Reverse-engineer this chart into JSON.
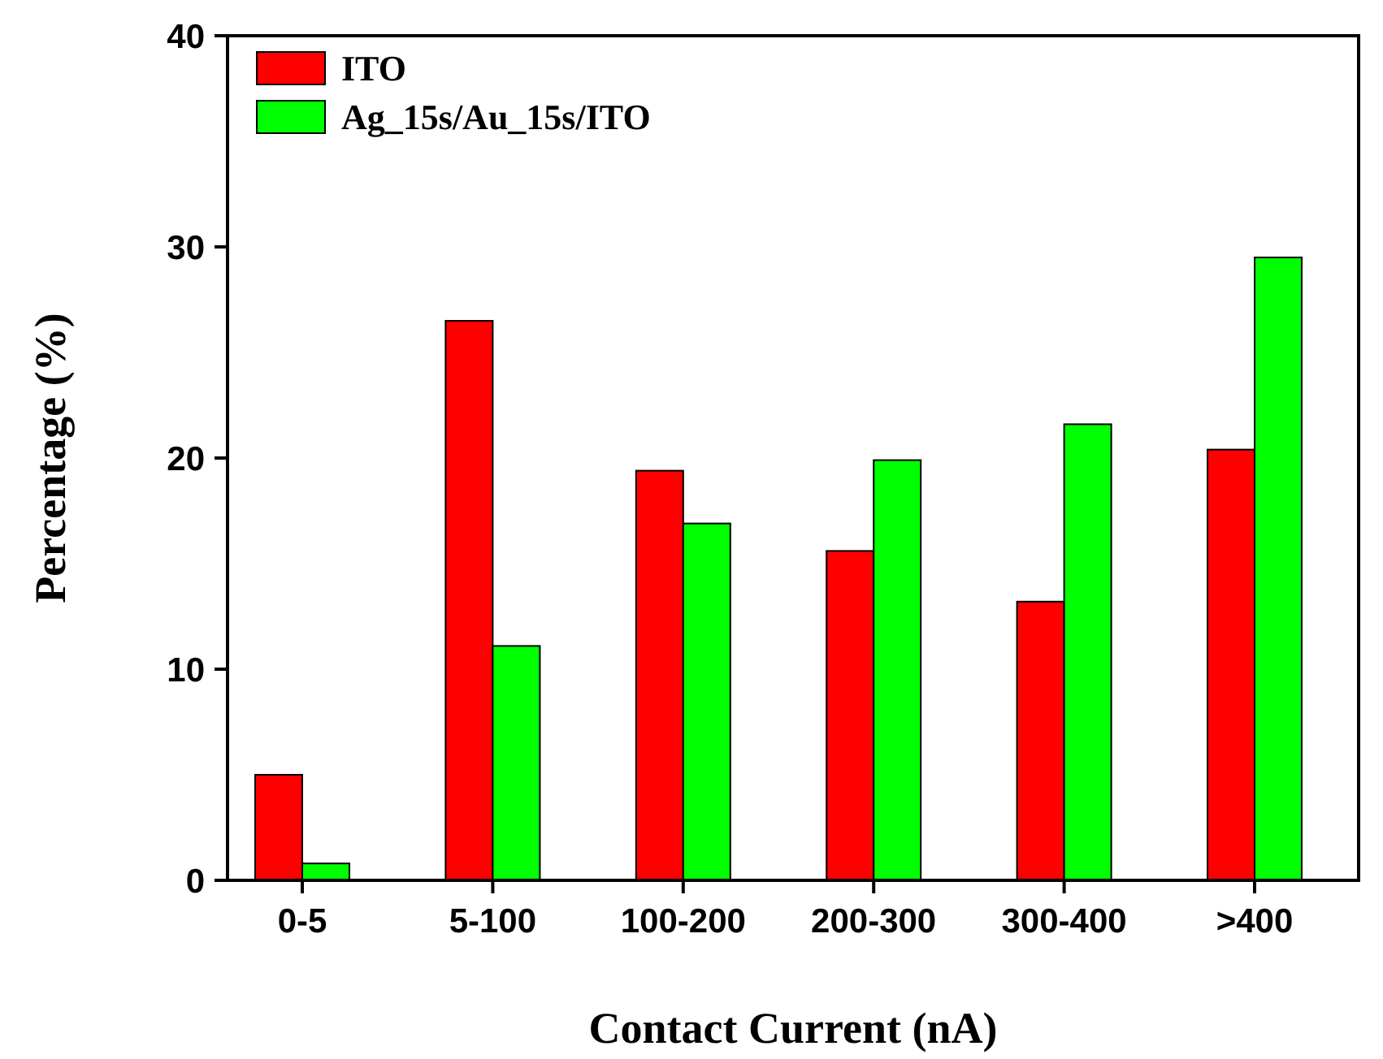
{
  "chart_data": {
    "type": "bar",
    "xlabel": "Contact Current (nA)",
    "ylabel": "Percentage (%)",
    "categories": [
      "0-5",
      "5-100",
      "100-200",
      "200-300",
      "300-400",
      ">400"
    ],
    "series": [
      {
        "name": "ITO",
        "color": "#ff0000",
        "values": [
          5.0,
          26.5,
          19.4,
          15.6,
          13.2,
          20.4
        ]
      },
      {
        "name": "Ag_15s/Au_15s/ITO",
        "color": "#00ff00",
        "values": [
          0.8,
          11.1,
          16.9,
          19.9,
          21.6,
          29.5
        ]
      }
    ],
    "ylim": [
      0,
      40
    ],
    "yticks": [
      0,
      10,
      20,
      30,
      40
    ],
    "grid": false,
    "legend": "top left"
  }
}
